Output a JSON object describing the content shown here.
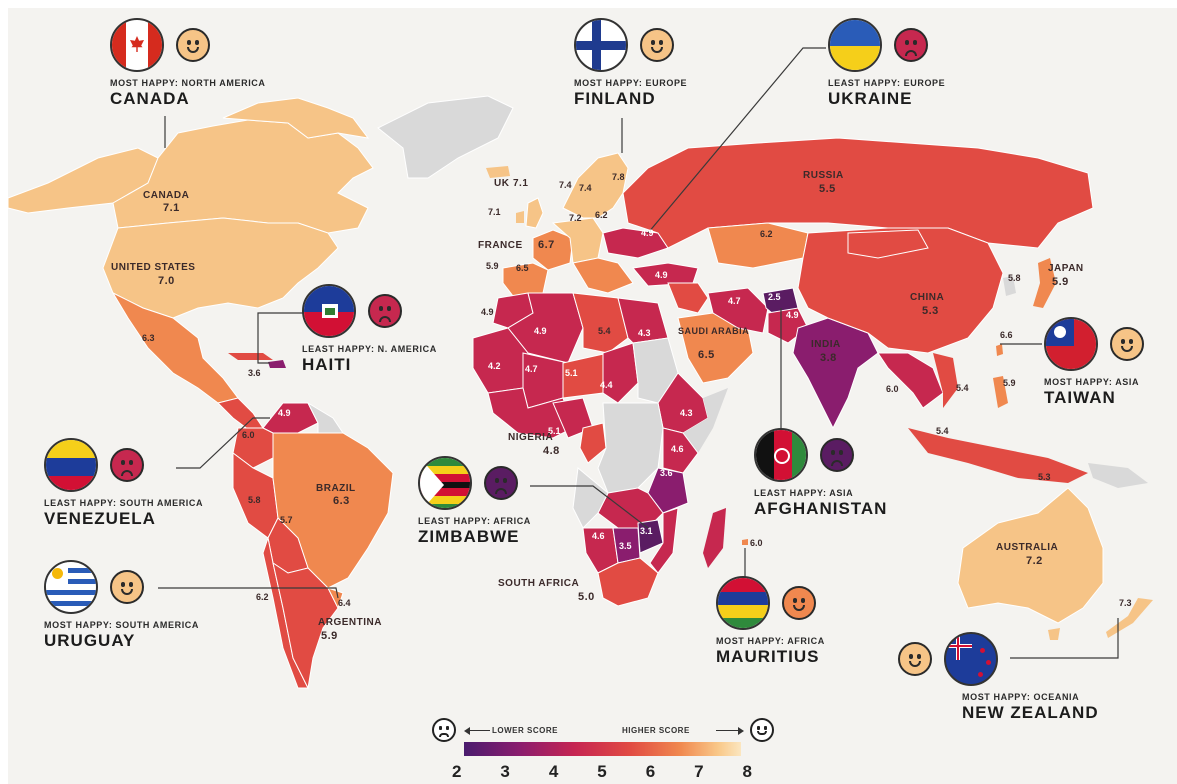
{
  "colors": {
    "ocean": "#f4f3f0",
    "score_2_5": "#5a1c62",
    "score_3_5": "#8a1d6e",
    "score_4_5": "#c62552",
    "score_5_5": "#e14b43",
    "score_6_5": "#f0884f",
    "score_7_5": "#f9c98a",
    "no_data": "#d9d9d9"
  },
  "map_labels": {
    "canada": {
      "name": "CANADA",
      "value": "7.1"
    },
    "usa": {
      "name": "UNITED STATES",
      "value": "7.0"
    },
    "mexico": {
      "value": "6.3"
    },
    "haiti_val": {
      "value": "3.6"
    },
    "venezuela_val": {
      "value": "4.9"
    },
    "colombia_val": {
      "value": "6.0"
    },
    "peru_val": {
      "value": "5.8"
    },
    "bolivia_val": {
      "value": "5.7"
    },
    "brazil": {
      "name": "BRAZIL",
      "value": "6.3"
    },
    "chile_val": {
      "value": "6.2"
    },
    "uruguay_val": {
      "value": "6.4"
    },
    "argentina": {
      "name": "ARGENTINA",
      "value": "5.9"
    },
    "uk": {
      "name": "UK",
      "value": "7.1"
    },
    "ireland_val": {
      "value": "7.1"
    },
    "france": {
      "name": "FRANCE",
      "value": "6.7"
    },
    "spain_val": {
      "value": "6.5"
    },
    "portugal_val": {
      "value": "5.9"
    },
    "norway_val": {
      "value": "7.4"
    },
    "sweden_val": {
      "value": "7.4"
    },
    "finland_val": {
      "value": "7.8"
    },
    "germany_val": {
      "value": "7.2"
    },
    "poland_val": {
      "value": "6.2"
    },
    "ukraine_val": {
      "value": "4.9"
    },
    "turkey_val": {
      "value": "4.9"
    },
    "russia": {
      "name": "RUSSIA",
      "value": "5.5"
    },
    "kazakhstan_val": {
      "value": "6.2"
    },
    "iran_val": {
      "value": "4.7"
    },
    "afghanistan_val": {
      "value": "2.5"
    },
    "pakistan_val": {
      "value": "4.9"
    },
    "india": {
      "name": "INDIA",
      "value": "3.8"
    },
    "china": {
      "name": "CHINA",
      "value": "5.3"
    },
    "japan": {
      "name": "JAPAN",
      "value": "5.9"
    },
    "korea_val": {
      "value": "5.8"
    },
    "taiwan_val": {
      "value": "6.6"
    },
    "philippines_val": {
      "value": "5.9"
    },
    "vietnam_val": {
      "value": "5.4"
    },
    "thailand_val": {
      "value": "6.0"
    },
    "malaysia_val": {
      "value": "5.4"
    },
    "indonesia_val": {
      "value": "5.3"
    },
    "saudi": {
      "name": "SAUDI ARABIA",
      "value": "6.5"
    },
    "egypt_val": {
      "value": "4.3"
    },
    "libya_val": {
      "value": "5.4"
    },
    "algeria_val": {
      "value": "4.9"
    },
    "morocco_val": {
      "value": "4.9"
    },
    "mauritania_val": {
      "value": "4.2"
    },
    "mali_val": {
      "value": "4.7"
    },
    "niger_val": {
      "value": "5.1"
    },
    "chad_val": {
      "value": "4.4"
    },
    "ethiopia_val": {
      "value": "4.3"
    },
    "kenya_val": {
      "value": "4.6"
    },
    "tanzania_val": {
      "value": "3.6"
    },
    "cameroon_val": {
      "value": "5.1"
    },
    "nigeria": {
      "name": "NIGERIA",
      "value": "4.8"
    },
    "namibia_val": {
      "value": "4.6"
    },
    "botswana_val": {
      "value": "3.5"
    },
    "zimbabwe_val": {
      "value": "3.1"
    },
    "south_africa": {
      "name": "SOUTH AFRICA",
      "value": "5.0"
    },
    "mauritius_val": {
      "value": "6.0"
    },
    "australia": {
      "name": "AUSTRALIA",
      "value": "7.2"
    },
    "new_zealand_val": {
      "value": "7.3"
    }
  },
  "callouts": {
    "canada": {
      "caption": "MOST HAPPY: NORTH AMERICA",
      "country": "CANADA",
      "mood": "happy",
      "flag": "canada-flag-icon"
    },
    "finland": {
      "caption": "MOST HAPPY: EUROPE",
      "country": "FINLAND",
      "mood": "happy",
      "flag": "finland-flag-icon"
    },
    "ukraine": {
      "caption": "LEAST HAPPY: EUROPE",
      "country": "UKRAINE",
      "mood": "sad",
      "flag": "ukraine-flag-icon"
    },
    "haiti": {
      "caption": "LEAST HAPPY: N. AMERICA",
      "country": "HAITI",
      "mood": "sad",
      "flag": "haiti-flag-icon"
    },
    "taiwan": {
      "caption": "MOST HAPPY: ASIA",
      "country": "TAIWAN",
      "mood": "happy",
      "flag": "taiwan-flag-icon"
    },
    "venezuela": {
      "caption": "LEAST HAPPY: SOUTH AMERICA",
      "country": "VENEZUELA",
      "mood": "sad",
      "flag": "venezuela-flag-icon"
    },
    "zimbabwe": {
      "caption": "LEAST HAPPY: AFRICA",
      "country": "ZIMBABWE",
      "mood": "sad",
      "flag": "zimbabwe-flag-icon"
    },
    "afghanistan": {
      "caption": "LEAST HAPPY: ASIA",
      "country": "AFGHANISTAN",
      "mood": "sad",
      "flag": "afghanistan-flag-icon"
    },
    "uruguay": {
      "caption": "MOST HAPPY: SOUTH AMERICA",
      "country": "URUGUAY",
      "mood": "happy",
      "flag": "uruguay-flag-icon"
    },
    "mauritius": {
      "caption": "MOST HAPPY: AFRICA",
      "country": "MAURITIUS",
      "mood": "happy",
      "flag": "mauritius-flag-icon"
    },
    "new_zealand": {
      "caption": "MOST HAPPY: OCEANIA",
      "country": "NEW ZEALAND",
      "mood": "happy",
      "flag": "new-zealand-flag-icon"
    }
  },
  "legend": {
    "lower": "LOWER SCORE",
    "higher": "HIGHER SCORE",
    "ticks": [
      "2",
      "3",
      "4",
      "5",
      "6",
      "7",
      "8"
    ]
  }
}
